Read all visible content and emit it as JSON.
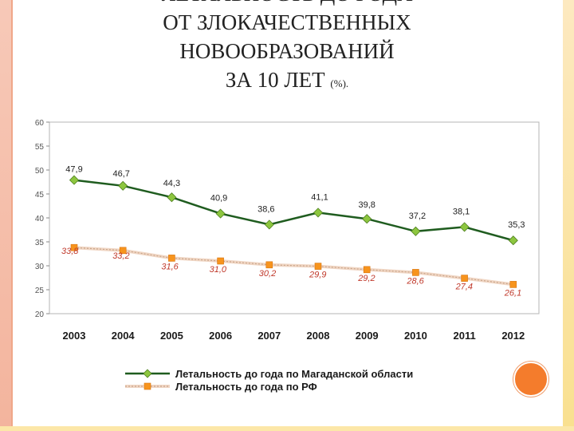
{
  "title": {
    "line1": "ЛЕТАЛЬНОСТЬ ДО ГОДА",
    "line2": "ОТ ЗЛОКАЧЕСТВЕННЫХ",
    "line3": "НОВООБРАЗОВАНИЙ",
    "line4_main": "ЗА 10 ЛЕТ",
    "line4_unit": "(%)."
  },
  "chart_data": {
    "type": "line",
    "categories": [
      "2003",
      "2004",
      "2005",
      "2006",
      "2007",
      "2008",
      "2009",
      "2010",
      "2011",
      "2012"
    ],
    "ylim": [
      20,
      60
    ],
    "yticks": [
      20,
      25,
      30,
      35,
      40,
      45,
      50,
      55,
      60
    ],
    "grid": false,
    "legend_position": "bottom",
    "series": [
      {
        "name": "Летальность до года по Магаданской области",
        "values": [
          47.9,
          46.7,
          44.3,
          40.9,
          38.6,
          41.1,
          39.8,
          37.2,
          38.1,
          35.3
        ],
        "labels": [
          "47,9",
          "46,7",
          "44,3",
          "40,9",
          "38,6",
          "41,1",
          "39,8",
          "37,2",
          "38,1",
          "35,3"
        ],
        "color": "#1f5c1f",
        "marker_color": "#8dc63f",
        "marker": "diamond"
      },
      {
        "name": "Летальность до года по РФ",
        "values": [
          33.8,
          33.2,
          31.6,
          31.0,
          30.2,
          29.9,
          29.2,
          28.6,
          27.4,
          26.1
        ],
        "labels": [
          "33,8",
          "33,2",
          "31,6",
          "31,0",
          "30,2",
          "29,9",
          "29,2",
          "28,6",
          "27,4",
          "26,1"
        ],
        "color": "#e8c7b0",
        "marker_color": "#f7941d",
        "marker": "square",
        "label_color": "#c0392b"
      }
    ]
  }
}
